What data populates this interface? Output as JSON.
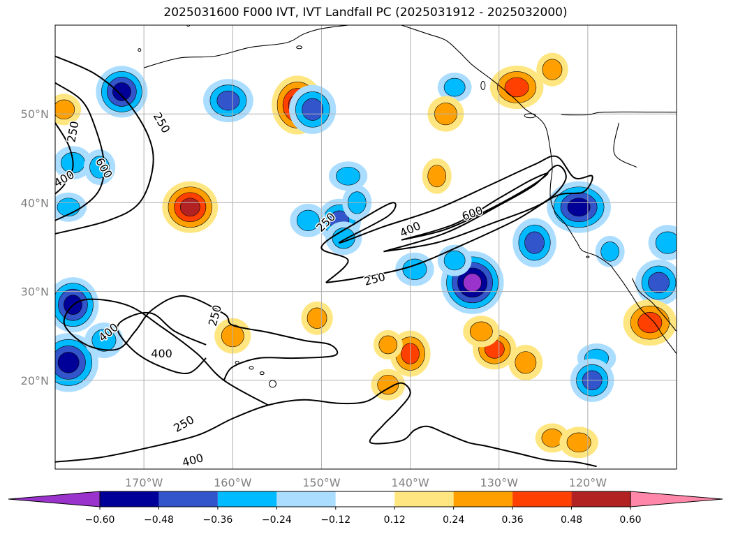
{
  "title": "2025031600 F000 IVT, IVT Landfall PC (2025031912 - 2025032000)",
  "chart_data": {
    "type": "contour_map",
    "title": "2025031600 F000 IVT, IVT Landfall PC (2025031912 - 2025032000)",
    "lon_range": [
      -180,
      -110
    ],
    "lat_range": [
      10,
      60
    ],
    "lon_ticks": [
      {
        "value": -170,
        "label": "170°W"
      },
      {
        "value": -160,
        "label": "160°W"
      },
      {
        "value": -150,
        "label": "150°W"
      },
      {
        "value": -140,
        "label": "140°W"
      },
      {
        "value": -130,
        "label": "130°W"
      },
      {
        "value": -120,
        "label": "120°W"
      }
    ],
    "lat_ticks": [
      {
        "value": 20,
        "label": "20°N"
      },
      {
        "value": 30,
        "label": "30°N"
      },
      {
        "value": 40,
        "label": "40°N"
      },
      {
        "value": 50,
        "label": "50°N"
      }
    ],
    "grid": true,
    "ivt_contour_levels": [
      250,
      400,
      600
    ],
    "contour_labels": [
      {
        "text": "250",
        "lon": -178.0,
        "lat": 48.0,
        "angle": -80
      },
      {
        "text": "250",
        "lon": -168.0,
        "lat": 49.0,
        "angle": 60
      },
      {
        "text": "600",
        "lon": -174.5,
        "lat": 43.9,
        "angle": 60
      },
      {
        "text": "400",
        "lon": -179.0,
        "lat": 42.7,
        "angle": -30
      },
      {
        "text": "250",
        "lon": -149.5,
        "lat": 37.8,
        "angle": -45
      },
      {
        "text": "400",
        "lon": -140.0,
        "lat": 37.0,
        "angle": -25
      },
      {
        "text": "600",
        "lon": -133.0,
        "lat": 38.8,
        "angle": -20
      },
      {
        "text": "250",
        "lon": -144.0,
        "lat": 31.4,
        "angle": -15
      },
      {
        "text": "400",
        "lon": -174.0,
        "lat": 25.4,
        "angle": -40
      },
      {
        "text": "400",
        "lon": -168.0,
        "lat": 23.0,
        "angle": 0
      },
      {
        "text": "250",
        "lon": -162.0,
        "lat": 27.3,
        "angle": -75
      },
      {
        "text": "250",
        "lon": -165.5,
        "lat": 15.1,
        "angle": -30
      },
      {
        "text": "400",
        "lon": -164.5,
        "lat": 11.0,
        "angle": -15
      }
    ],
    "colorbar": {
      "levels": [
        -0.6,
        -0.48,
        -0.36,
        -0.24,
        -0.12,
        0.12,
        0.24,
        0.36,
        0.48,
        0.6
      ],
      "tick_labels": [
        "−0.60",
        "−0.48",
        "−0.36",
        "−0.24",
        "−0.12",
        "0.12",
        "0.24",
        "0.36",
        "0.48",
        "0.60"
      ],
      "colors": [
        "#9933cc",
        "#000099",
        "#3355cc",
        "#00bbff",
        "#aaddff",
        "#ffffff",
        "#ffe680",
        "#ffa000",
        "#ff4000",
        "#b22222",
        "#ff88aa"
      ],
      "extend": "both"
    },
    "pc_blobs": [
      {
        "lon": -172.5,
        "lat": 52.5,
        "value": -0.48
      },
      {
        "lon": -179.0,
        "lat": 50.5,
        "value": 0.24
      },
      {
        "lon": -178.0,
        "lat": 44.5,
        "value": -0.24
      },
      {
        "lon": -175.0,
        "lat": 44.0,
        "value": -0.24
      },
      {
        "lon": -178.5,
        "lat": 39.5,
        "value": -0.24
      },
      {
        "lon": -178.0,
        "lat": 28.5,
        "value": -0.48
      },
      {
        "lon": -178.5,
        "lat": 22.0,
        "value": -0.48
      },
      {
        "lon": -174.5,
        "lat": 24.5,
        "value": -0.24
      },
      {
        "lon": -164.8,
        "lat": 39.5,
        "value": 0.48
      },
      {
        "lon": -160.5,
        "lat": 51.5,
        "value": -0.36
      },
      {
        "lon": -152.7,
        "lat": 51.0,
        "value": 0.48
      },
      {
        "lon": -151.0,
        "lat": 50.5,
        "value": -0.36
      },
      {
        "lon": -147.0,
        "lat": 43.0,
        "value": -0.24
      },
      {
        "lon": -148.0,
        "lat": 38.0,
        "value": -0.36
      },
      {
        "lon": -151.5,
        "lat": 38.0,
        "value": -0.24
      },
      {
        "lon": -146.0,
        "lat": 40.0,
        "value": -0.24
      },
      {
        "lon": -135.0,
        "lat": 53.0,
        "value": -0.24
      },
      {
        "lon": -128.0,
        "lat": 53.0,
        "value": 0.36
      },
      {
        "lon": -124.0,
        "lat": 55.0,
        "value": 0.24
      },
      {
        "lon": -136.0,
        "lat": 50.0,
        "value": 0.24
      },
      {
        "lon": -133.0,
        "lat": 31.0,
        "value": -0.6
      },
      {
        "lon": -135.0,
        "lat": 33.5,
        "value": -0.24
      },
      {
        "lon": -139.5,
        "lat": 32.5,
        "value": -0.24
      },
      {
        "lon": -126.0,
        "lat": 35.5,
        "value": -0.36
      },
      {
        "lon": -121.0,
        "lat": 39.5,
        "value": -0.48
      },
      {
        "lon": -117.5,
        "lat": 34.5,
        "value": -0.24
      },
      {
        "lon": -112.0,
        "lat": 31.0,
        "value": -0.36
      },
      {
        "lon": -111.0,
        "lat": 35.5,
        "value": -0.24
      },
      {
        "lon": -130.5,
        "lat": 23.5,
        "value": 0.36
      },
      {
        "lon": -132.0,
        "lat": 25.5,
        "value": 0.24
      },
      {
        "lon": -140.0,
        "lat": 23.0,
        "value": 0.36
      },
      {
        "lon": -127.0,
        "lat": 22.0,
        "value": 0.24
      },
      {
        "lon": -119.0,
        "lat": 22.5,
        "value": -0.24
      },
      {
        "lon": -119.5,
        "lat": 20.0,
        "value": -0.36
      },
      {
        "lon": -147.5,
        "lat": 36.0,
        "value": -0.24
      },
      {
        "lon": -137.0,
        "lat": 43.0,
        "value": 0.24
      },
      {
        "lon": -124.0,
        "lat": 13.5,
        "value": 0.24
      },
      {
        "lon": -121.0,
        "lat": 13.0,
        "value": 0.24
      },
      {
        "lon": -150.5,
        "lat": 27.0,
        "value": 0.24
      },
      {
        "lon": -160.0,
        "lat": 25.0,
        "value": 0.24
      },
      {
        "lon": -142.5,
        "lat": 24.0,
        "value": 0.24
      },
      {
        "lon": -142.5,
        "lat": 19.5,
        "value": 0.24
      },
      {
        "lon": -113.0,
        "lat": 26.5,
        "value": 0.36
      }
    ],
    "ivt_contours": [
      {
        "level": 600,
        "points": [
          [
            -141,
            35.8
          ],
          [
            -135,
            37.6
          ],
          [
            -130,
            40.5
          ],
          [
            -126.5,
            42.5
          ],
          [
            -124.5,
            43.3
          ],
          [
            -126.5,
            41.8
          ],
          [
            -131,
            39.3
          ],
          [
            -136,
            37
          ],
          [
            -141,
            35.8
          ]
        ]
      },
      {
        "level": 400,
        "points": [
          [
            -143,
            34.5
          ],
          [
            -136,
            36.6
          ],
          [
            -130,
            39.7
          ],
          [
            -126,
            42
          ],
          [
            -123.5,
            44.2
          ],
          [
            -122.5,
            42.6
          ],
          [
            -125,
            40
          ],
          [
            -131,
            37.6
          ],
          [
            -137,
            35.5
          ],
          [
            -143,
            34.5
          ]
        ]
      },
      {
        "level": 250,
        "points": [
          [
            -149.5,
            31
          ],
          [
            -146,
            31.5
          ],
          [
            -140,
            32.8
          ],
          [
            -134,
            35.3
          ],
          [
            -128,
            38.1
          ],
          [
            -123.5,
            40.8
          ],
          [
            -120.5,
            41.2
          ],
          [
            -119.5,
            43
          ],
          [
            -121.5,
            42.8
          ],
          [
            -123.5,
            45.2
          ],
          [
            -126,
            44.3
          ],
          [
            -131,
            42
          ],
          [
            -137,
            39.3
          ],
          [
            -143,
            37.3
          ],
          [
            -148,
            35.5
          ],
          [
            -142.5,
            38.5
          ],
          [
            -142,
            40
          ],
          [
            -146,
            37.8
          ],
          [
            -150,
            35
          ],
          [
            -147,
            33.5
          ],
          [
            -149.5,
            31
          ]
        ]
      },
      {
        "level": 250,
        "points": [
          [
            -180,
            56.5
          ],
          [
            -175.5,
            54.5
          ],
          [
            -172,
            51.5
          ],
          [
            -169.5,
            47.5
          ],
          [
            -169,
            44
          ],
          [
            -170.5,
            40
          ],
          [
            -174,
            38
          ],
          [
            -180,
            36.5
          ]
        ]
      },
      {
        "level": 400,
        "points": [
          [
            -180,
            53.5
          ],
          [
            -177,
            51.5
          ],
          [
            -175.5,
            48.5
          ],
          [
            -174.5,
            44.5
          ],
          [
            -175,
            41.5
          ],
          [
            -177,
            39.5
          ],
          [
            -180,
            38
          ]
        ]
      },
      {
        "level": 600,
        "points": [
          [
            -180,
            49
          ],
          [
            -178.5,
            46.5
          ],
          [
            -178,
            44
          ],
          [
            -179,
            42
          ],
          [
            -180,
            41
          ]
        ]
      },
      {
        "level": 250,
        "points": [
          [
            -180,
            10.8
          ],
          [
            -175,
            11.3
          ],
          [
            -170,
            12.3
          ],
          [
            -164,
            13.8
          ],
          [
            -160,
            15.7
          ],
          [
            -156,
            17.2
          ],
          [
            -152,
            17.8
          ],
          [
            -148,
            17.4
          ],
          [
            -145,
            17.6
          ],
          [
            -143,
            18.8
          ],
          [
            -141,
            19.7
          ],
          [
            -140,
            18.5
          ],
          [
            -141.5,
            16.5
          ],
          [
            -143,
            15
          ],
          [
            -144.5,
            13
          ],
          [
            -141,
            13.2
          ],
          [
            -139.5,
            14.4
          ],
          [
            -138,
            14.8
          ],
          [
            -136,
            14
          ],
          [
            -133.5,
            13
          ],
          [
            -131.5,
            12.6
          ],
          [
            -128,
            11.8
          ],
          [
            -124.5,
            11
          ],
          [
            -121.5,
            10.8
          ],
          [
            -119,
            10.3
          ]
        ]
      },
      {
        "level": 250,
        "points": [
          [
            -156,
            17.2
          ],
          [
            -161,
            20
          ],
          [
            -164,
            23
          ],
          [
            -168,
            26
          ],
          [
            -172,
            28.5
          ],
          [
            -177,
            29
          ],
          [
            -179,
            26.5
          ],
          [
            -176.5,
            24
          ],
          [
            -173,
            23.5
          ],
          [
            -171,
            25.5
          ],
          [
            -169,
            28
          ],
          [
            -165.5,
            29.5
          ],
          [
            -161,
            27.5
          ],
          [
            -160,
            26.2
          ],
          [
            -156,
            25.4
          ],
          [
            -152,
            24.5
          ],
          [
            -149,
            24
          ],
          [
            -148.5,
            22.8
          ],
          [
            -153,
            22.5
          ],
          [
            -157,
            22.5
          ],
          [
            -160,
            21.5
          ],
          [
            -161,
            20
          ]
        ]
      },
      {
        "level": 400,
        "points": [
          [
            -163,
            24
          ],
          [
            -166.5,
            25.5
          ],
          [
            -169,
            27.5
          ],
          [
            -171.5,
            27.2
          ],
          [
            -173,
            25.8
          ],
          [
            -171,
            23.2
          ],
          [
            -168,
            21.5
          ],
          [
            -165,
            20.8
          ],
          [
            -163,
            22.5
          ]
        ]
      }
    ]
  }
}
